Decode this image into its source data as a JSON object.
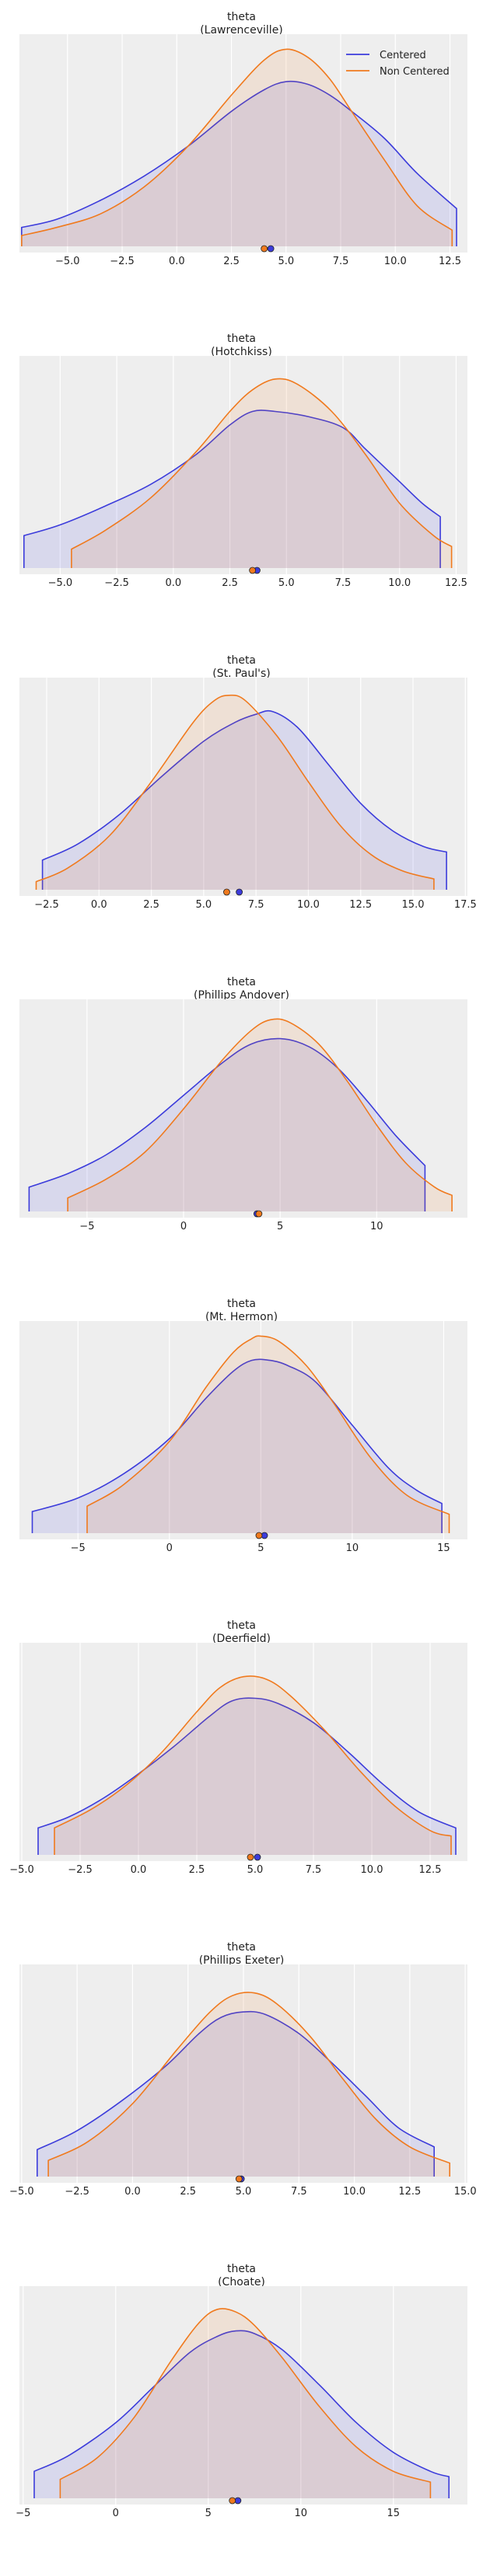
{
  "colors": {
    "centered": "#3c3cdb",
    "non_centered": "#f07a1e",
    "panel_bg": "#eeeeee",
    "grid": "#ffffff",
    "text": "#222222"
  },
  "legend": {
    "placement": "top-right",
    "entries": [
      "Centered",
      "Non Centered"
    ]
  },
  "chart_data": [
    {
      "type": "area",
      "title": "theta",
      "subtitle": "(Lawrenceville)",
      "grid": true,
      "xlim": [
        -7.2,
        13.3
      ],
      "ticks": [
        -5.0,
        -2.5,
        0.0,
        2.5,
        5.0,
        7.5,
        10.0,
        12.5
      ],
      "tick_labels": [
        "−5.0",
        "−2.5",
        "0.0",
        "2.5",
        "5.0",
        "7.5",
        "10.0",
        "12.5"
      ],
      "series": [
        {
          "name": "Centered",
          "x": [
            -7.1,
            -5.5,
            -3.5,
            -1.5,
            0.5,
            2.5,
            4.0,
            5.0,
            6.0,
            7.0,
            8.0,
            9.5,
            11.0,
            12.8
          ],
          "density": [
            0.07,
            0.1,
            0.17,
            0.26,
            0.37,
            0.5,
            0.58,
            0.61,
            0.6,
            0.56,
            0.5,
            0.4,
            0.27,
            0.14
          ],
          "mean": 4.3
        },
        {
          "name": "Non Centered",
          "x": [
            -7.1,
            -5.5,
            -3.5,
            -1.5,
            0.5,
            2.5,
            4.0,
            5.0,
            6.0,
            7.0,
            8.0,
            9.5,
            11.0,
            12.6
          ],
          "density": [
            0.04,
            0.07,
            0.12,
            0.22,
            0.37,
            0.56,
            0.69,
            0.73,
            0.7,
            0.62,
            0.5,
            0.32,
            0.15,
            0.06
          ],
          "mean": 4.0
        }
      ]
    },
    {
      "type": "area",
      "title": "theta",
      "subtitle": "(Hotchkiss)",
      "grid": true,
      "xlim": [
        -6.8,
        13.0
      ],
      "ticks": [
        -5.0,
        -2.5,
        0.0,
        2.5,
        5.0,
        7.5,
        10.0,
        12.5
      ],
      "tick_labels": [
        "−5.0",
        "−2.5",
        "0.0",
        "2.5",
        "5.0",
        "7.5",
        "10.0",
        "12.5"
      ],
      "series": [
        {
          "name": "Centered",
          "x": [
            -6.6,
            -5.0,
            -3.0,
            -1.0,
            1.0,
            2.5,
            3.5,
            4.5,
            6.0,
            7.5,
            8.5,
            10.0,
            11.0,
            11.8
          ],
          "density": [
            0.12,
            0.16,
            0.23,
            0.31,
            0.42,
            0.53,
            0.58,
            0.58,
            0.56,
            0.52,
            0.44,
            0.32,
            0.24,
            0.19
          ],
          "mean": 3.7
        },
        {
          "name": "Non Centered",
          "x": [
            -4.5,
            -3.0,
            -1.0,
            1.0,
            2.5,
            3.5,
            4.5,
            5.5,
            7.0,
            8.5,
            10.0,
            11.5,
            12.3
          ],
          "density": [
            0.07,
            0.14,
            0.26,
            0.43,
            0.58,
            0.66,
            0.7,
            0.68,
            0.58,
            0.42,
            0.24,
            0.12,
            0.08
          ],
          "mean": 3.5
        }
      ]
    },
    {
      "type": "area",
      "title": "theta",
      "subtitle": "(St. Paul's)",
      "grid": true,
      "xlim": [
        -3.8,
        17.6
      ],
      "ticks": [
        -2.5,
        0.0,
        2.5,
        5.0,
        7.5,
        10.0,
        12.5,
        15.0,
        17.5
      ],
      "tick_labels": [
        "−2.5",
        "0.0",
        "2.5",
        "5.0",
        "7.5",
        "10.0",
        "12.5",
        "15.0",
        "17.5"
      ],
      "series": [
        {
          "name": "Centered",
          "x": [
            -2.7,
            -1.0,
            1.0,
            3.0,
            5.0,
            6.5,
            7.5,
            8.3,
            9.5,
            11.0,
            12.5,
            14.0,
            15.5,
            16.6
          ],
          "density": [
            0.11,
            0.17,
            0.28,
            0.42,
            0.55,
            0.62,
            0.65,
            0.66,
            0.6,
            0.46,
            0.32,
            0.22,
            0.16,
            0.14
          ],
          "mean": 6.7
        },
        {
          "name": "Non Centered",
          "x": [
            -3.0,
            -1.5,
            0.5,
            2.5,
            4.5,
            5.5,
            6.2,
            7.0,
            8.5,
            10.0,
            11.5,
            13.0,
            14.5,
            16.0
          ],
          "density": [
            0.03,
            0.08,
            0.2,
            0.4,
            0.62,
            0.7,
            0.72,
            0.7,
            0.57,
            0.4,
            0.24,
            0.13,
            0.07,
            0.04
          ],
          "mean": 6.1
        }
      ]
    },
    {
      "type": "area",
      "title": "theta",
      "subtitle": "(Phillips Andover)",
      "grid": true,
      "xlim": [
        -8.5,
        14.7
      ],
      "ticks": [
        -5,
        0,
        5,
        10
      ],
      "tick_labels": [
        "−5",
        "0",
        "5",
        "10"
      ],
      "series": [
        {
          "name": "Centered",
          "x": [
            -8.0,
            -6.0,
            -4.0,
            -2.0,
            0.0,
            2.0,
            3.5,
            5.0,
            6.5,
            8.0,
            9.5,
            11.0,
            12.5
          ],
          "density": [
            0.09,
            0.14,
            0.21,
            0.31,
            0.43,
            0.55,
            0.62,
            0.64,
            0.61,
            0.53,
            0.41,
            0.28,
            0.17
          ],
          "mean": 3.8
        },
        {
          "name": "Non Centered",
          "x": [
            -6.0,
            -4.0,
            -2.0,
            0.0,
            2.0,
            3.5,
            4.5,
            5.5,
            7.0,
            8.5,
            10.0,
            11.5,
            13.0,
            13.9
          ],
          "density": [
            0.05,
            0.12,
            0.22,
            0.38,
            0.56,
            0.67,
            0.71,
            0.7,
            0.62,
            0.48,
            0.32,
            0.18,
            0.09,
            0.06
          ],
          "mean": 3.9
        }
      ]
    },
    {
      "type": "area",
      "title": "theta",
      "subtitle": "(Mt. Hermon)",
      "grid": true,
      "xlim": [
        -8.2,
        16.3
      ],
      "ticks": [
        -5,
        0,
        5,
        10,
        15
      ],
      "tick_labels": [
        "−5",
        "0",
        "5",
        "10",
        "15"
      ],
      "series": [
        {
          "name": "Centered",
          "x": [
            -7.5,
            -5.0,
            -2.5,
            0.0,
            2.0,
            3.5,
            4.5,
            5.5,
            6.5,
            8.0,
            10.0,
            12.0,
            13.5,
            14.9
          ],
          "density": [
            0.08,
            0.13,
            0.22,
            0.35,
            0.5,
            0.6,
            0.64,
            0.64,
            0.62,
            0.56,
            0.4,
            0.24,
            0.16,
            0.11
          ],
          "mean": 5.2
        },
        {
          "name": "Non Centered",
          "x": [
            -4.5,
            -2.5,
            0.0,
            2.0,
            3.5,
            4.5,
            5.0,
            6.0,
            7.5,
            9.0,
            11.0,
            13.0,
            15.3
          ],
          "density": [
            0.1,
            0.18,
            0.34,
            0.54,
            0.67,
            0.72,
            0.73,
            0.71,
            0.62,
            0.48,
            0.28,
            0.14,
            0.07
          ],
          "mean": 4.9
        }
      ]
    },
    {
      "type": "area",
      "title": "theta",
      "subtitle": "(Deerfield)",
      "grid": true,
      "xlim": [
        -5.1,
        14.1
      ],
      "ticks": [
        -5.0,
        -2.5,
        0.0,
        2.5,
        5.0,
        7.5,
        10.0,
        12.5
      ],
      "tick_labels": [
        "−5.0",
        "−2.5",
        "0.0",
        "2.5",
        "5.0",
        "7.5",
        "10.0",
        "12.5"
      ],
      "series": [
        {
          "name": "Centered",
          "x": [
            -4.3,
            -3.0,
            -1.5,
            0.0,
            1.5,
            3.0,
            4.0,
            5.0,
            6.0,
            7.5,
            9.0,
            10.5,
            12.0,
            13.6
          ],
          "density": [
            0.1,
            0.14,
            0.21,
            0.3,
            0.4,
            0.51,
            0.57,
            0.58,
            0.56,
            0.49,
            0.38,
            0.26,
            0.16,
            0.1
          ],
          "mean": 5.1
        },
        {
          "name": "Non Centered",
          "x": [
            -3.6,
            -2.0,
            -0.5,
            1.0,
            2.5,
            3.5,
            4.5,
            5.5,
            6.5,
            8.0,
            9.5,
            11.0,
            12.5,
            13.4
          ],
          "density": [
            0.1,
            0.17,
            0.26,
            0.38,
            0.53,
            0.62,
            0.66,
            0.65,
            0.59,
            0.46,
            0.31,
            0.18,
            0.09,
            0.07
          ],
          "mean": 4.8
        }
      ]
    },
    {
      "type": "area",
      "title": "theta",
      "subtitle": "(Phillips Exeter)",
      "grid": true,
      "xlim": [
        -5.1,
        15.1
      ],
      "ticks": [
        -5.0,
        -2.5,
        0.0,
        2.5,
        5.0,
        7.5,
        10.0,
        12.5,
        15.0
      ],
      "tick_labels": [
        "−5.0",
        "−2.5",
        "0.0",
        "2.5",
        "5.0",
        "7.5",
        "10.0",
        "12.5",
        "15.0"
      ],
      "series": [
        {
          "name": "Centered",
          "x": [
            -4.3,
            -2.5,
            -0.5,
            1.5,
            3.0,
            4.0,
            5.0,
            6.0,
            7.5,
            9.0,
            10.5,
            12.0,
            13.6
          ],
          "density": [
            0.1,
            0.17,
            0.28,
            0.41,
            0.53,
            0.59,
            0.61,
            0.6,
            0.53,
            0.42,
            0.3,
            0.18,
            0.11
          ],
          "mean": 4.9
        },
        {
          "name": "Non Centered",
          "x": [
            -3.8,
            -2.0,
            0.0,
            2.0,
            3.5,
            4.5,
            5.5,
            6.5,
            8.0,
            9.5,
            11.0,
            12.5,
            14.3
          ],
          "density": [
            0.06,
            0.13,
            0.27,
            0.47,
            0.61,
            0.67,
            0.68,
            0.64,
            0.52,
            0.36,
            0.21,
            0.11,
            0.05
          ],
          "mean": 4.8
        }
      ]
    },
    {
      "type": "area",
      "title": "theta",
      "subtitle": "(Choate)",
      "grid": true,
      "xlim": [
        -5.2,
        19.0
      ],
      "ticks": [
        -5,
        0,
        5,
        10,
        15
      ],
      "tick_labels": [
        "−5",
        "0",
        "5",
        "10",
        "15"
      ],
      "series": [
        {
          "name": "Centered",
          "x": [
            -4.4,
            -2.5,
            0.0,
            2.0,
            4.0,
            5.5,
            6.5,
            7.5,
            9.0,
            11.0,
            13.0,
            15.0,
            17.0,
            18.0
          ],
          "density": [
            0.1,
            0.16,
            0.28,
            0.41,
            0.54,
            0.6,
            0.62,
            0.61,
            0.55,
            0.42,
            0.28,
            0.17,
            0.1,
            0.08
          ],
          "mean": 6.6
        },
        {
          "name": "Non Centered",
          "x": [
            -3.0,
            -1.0,
            1.0,
            3.0,
            4.5,
            5.5,
            6.5,
            7.5,
            9.0,
            11.0,
            13.0,
            15.0,
            17.0
          ],
          "density": [
            0.07,
            0.15,
            0.3,
            0.51,
            0.65,
            0.7,
            0.69,
            0.64,
            0.52,
            0.34,
            0.19,
            0.1,
            0.06
          ],
          "mean": 6.3
        }
      ]
    }
  ]
}
